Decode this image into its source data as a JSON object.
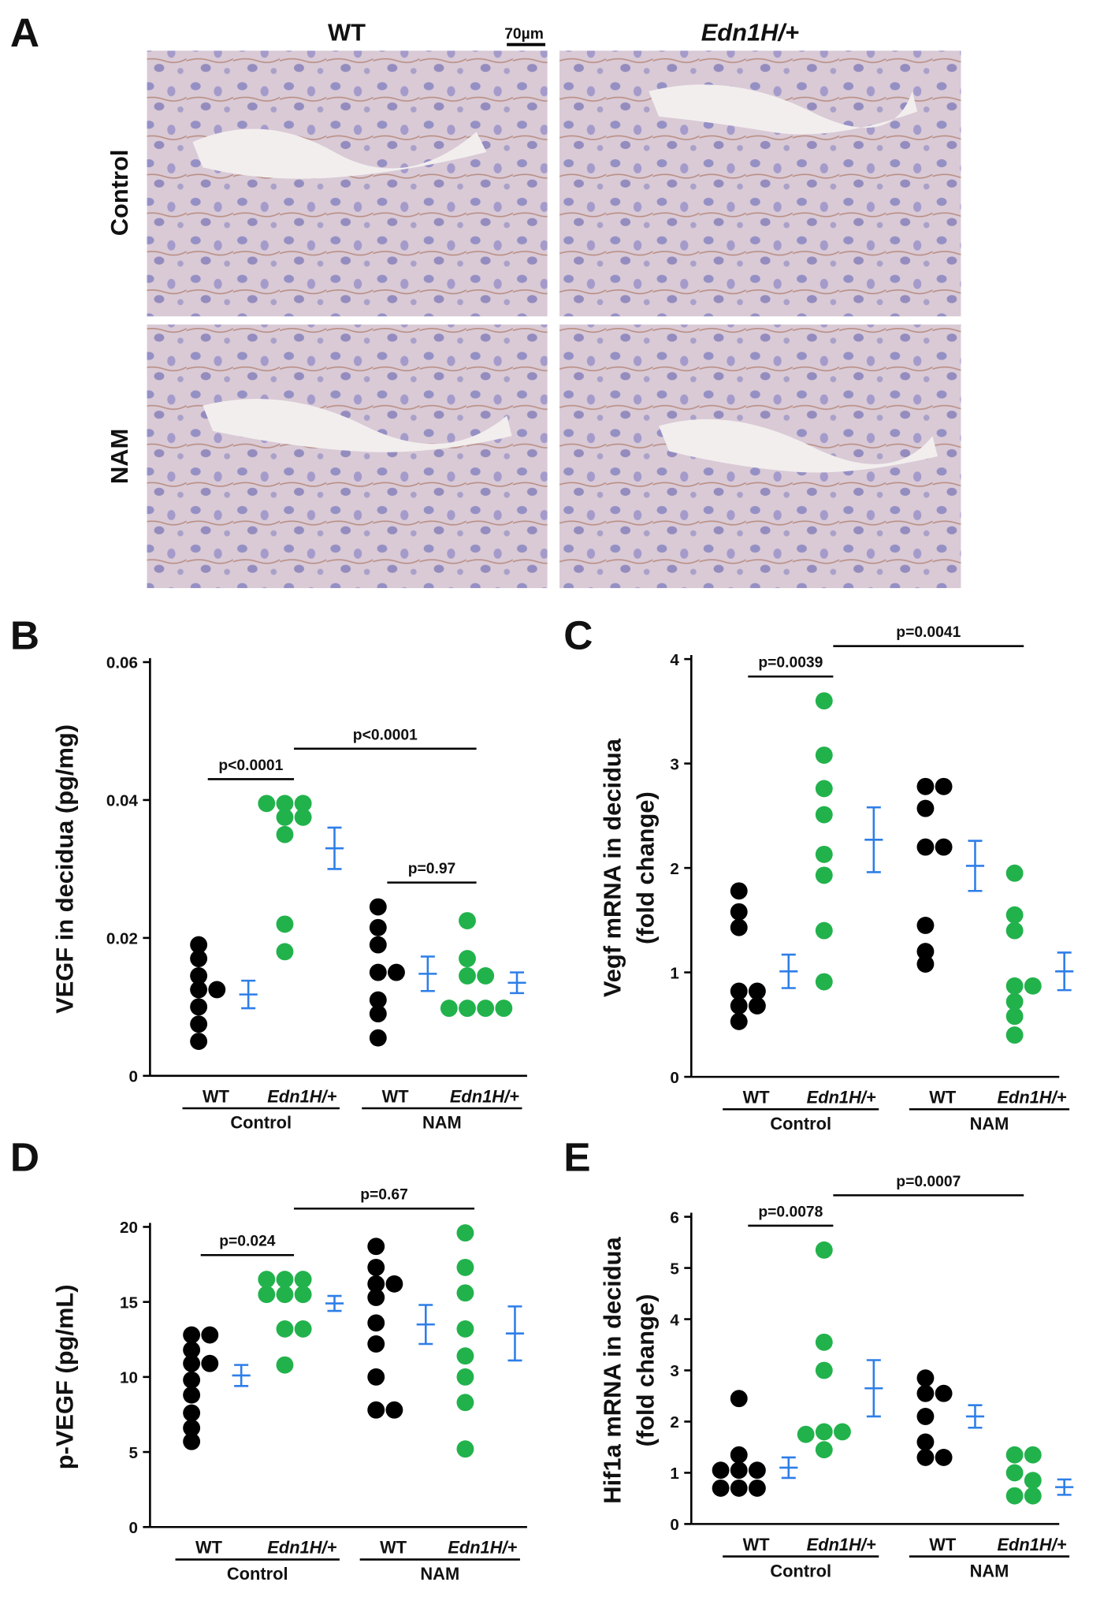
{
  "panel_a": {
    "label": "A",
    "columns": [
      "WT",
      "Edn1H/+"
    ],
    "rows": [
      "Control",
      "NAM"
    ],
    "scale_bar": "70µm"
  },
  "chart_data": [
    {
      "type": "dot",
      "panel": "B",
      "ylabel": [
        "VEGF in decidua (pg/mg)"
      ],
      "ylim": [
        0,
        0.06
      ],
      "yticks": [
        0,
        0.02,
        0.04,
        0.06
      ],
      "categories": [
        "WT",
        "Edn1H/+",
        "WT",
        "Edn1H/+"
      ],
      "groups": [
        "Control",
        "NAM"
      ],
      "colors": [
        "#000000",
        "#22b24c",
        "#000000",
        "#22b24c"
      ],
      "mean_color": "#2d7ee8",
      "values": [
        [
          0.019,
          0.017,
          0.0145,
          0.0125,
          0.0125,
          0.01,
          0.0075,
          0.005
        ],
        [
          0.0395,
          0.0395,
          0.0395,
          0.0375,
          0.0375,
          0.035,
          0.022,
          0.018
        ],
        [
          0.0245,
          0.0215,
          0.019,
          0.015,
          0.015,
          0.011,
          0.009,
          0.0055
        ],
        [
          0.0225,
          0.017,
          0.0145,
          0.0145,
          0.0098,
          0.0098,
          0.0098,
          0.0098
        ]
      ],
      "means": [
        0.0118,
        0.033,
        0.0148,
        0.0135
      ],
      "errors": [
        0.002,
        0.003,
        0.0025,
        0.0015
      ],
      "comparisons": [
        {
          "label": "p<0.0001",
          "from": 0,
          "to": 1
        },
        {
          "label": "p<0.0001",
          "from": 1,
          "to": 3
        },
        {
          "label": "p=0.97",
          "from": 2,
          "to": 3
        }
      ]
    },
    {
      "type": "dot",
      "panel": "C",
      "ylabel": [
        "Vegf mRNA in decidua",
        "(fold change)"
      ],
      "ylim": [
        0,
        4
      ],
      "yticks": [
        0,
        1,
        2,
        3,
        4
      ],
      "categories": [
        "WT",
        "Edn1H/+",
        "WT",
        "Edn1H/+"
      ],
      "groups": [
        "Control",
        "NAM"
      ],
      "colors": [
        "#000000",
        "#22b24c",
        "#000000",
        "#22b24c"
      ],
      "mean_color": "#2d7ee8",
      "values": [
        [
          1.78,
          1.58,
          1.43,
          0.82,
          0.82,
          0.68,
          0.68,
          0.53
        ],
        [
          3.6,
          3.08,
          2.76,
          2.51,
          2.13,
          1.93,
          1.4,
          0.91
        ],
        [
          2.78,
          2.78,
          2.57,
          2.2,
          2.2,
          1.45,
          1.2,
          1.08
        ],
        [
          1.95,
          1.55,
          1.4,
          0.87,
          0.87,
          0.72,
          0.58,
          0.4
        ]
      ],
      "means": [
        1.01,
        2.27,
        2.02,
        1.01
      ],
      "errors": [
        0.16,
        0.31,
        0.24,
        0.18
      ],
      "comparisons": [
        {
          "label": "p=0.0039",
          "from": 0,
          "to": 1
        },
        {
          "label": "p=0.0041",
          "from": 1,
          "to": 3
        }
      ]
    },
    {
      "type": "dot",
      "panel": "D",
      "ylabel": [
        "p-VEGF (pg/mL)"
      ],
      "ylim": [
        0,
        20
      ],
      "yticks": [
        0,
        5,
        10,
        15,
        20
      ],
      "categories": [
        "WT",
        "Edn1H/+",
        "WT",
        "Edn1H/+"
      ],
      "groups": [
        "Control",
        "NAM"
      ],
      "colors": [
        "#000000",
        "#22b24c",
        "#000000",
        "#22b24c"
      ],
      "mean_color": "#2d7ee8",
      "values": [
        [
          12.8,
          12.8,
          11.8,
          10.9,
          10.9,
          9.8,
          8.8,
          7.6,
          6.6,
          5.7
        ],
        [
          16.5,
          16.5,
          16.5,
          15.5,
          15.5,
          15.5,
          13.2,
          13.2,
          10.8
        ],
        [
          18.7,
          17.3,
          16.2,
          16.2,
          15.3,
          13.6,
          12.2,
          10,
          7.8,
          7.8
        ],
        [
          19.6,
          17.3,
          15.6,
          13.2,
          11.4,
          10,
          8.3,
          5.2
        ]
      ],
      "means": [
        10.1,
        14.9,
        13.5,
        12.9
      ],
      "errors": [
        0.7,
        0.5,
        1.3,
        1.8
      ],
      "comparisons": [
        {
          "label": "p=0.024",
          "from": 0,
          "to": 1
        },
        {
          "label": "p=0.67",
          "from": 1,
          "to": 3
        }
      ]
    },
    {
      "type": "dot",
      "panel": "E",
      "ylabel": [
        "Hif1a mRNA in decidua",
        "(fold change)"
      ],
      "ylim": [
        0,
        6
      ],
      "yticks": [
        0,
        1,
        2,
        3,
        4,
        5,
        6
      ],
      "categories": [
        "WT",
        "Edn1H/+",
        "WT",
        "Edn1H/+"
      ],
      "groups": [
        "Control",
        "NAM"
      ],
      "colors": [
        "#000000",
        "#22b24c",
        "#000000",
        "#22b24c"
      ],
      "mean_color": "#2d7ee8",
      "values": [
        [
          2.45,
          1.35,
          1.05,
          1.05,
          1.05,
          0.7,
          0.7,
          0.7
        ],
        [
          5.35,
          3.55,
          3.0,
          1.8,
          1.8,
          1.75,
          1.45
        ],
        [
          2.85,
          2.55,
          2.55,
          2.1,
          1.6,
          1.3,
          1.3
        ],
        [
          1.35,
          1.35,
          1.0,
          0.85,
          0.55,
          0.55
        ]
      ],
      "means": [
        1.1,
        2.65,
        2.1,
        0.72
      ],
      "errors": [
        0.2,
        0.55,
        0.22,
        0.15
      ],
      "comparisons": [
        {
          "label": "p=0.0078",
          "from": 0,
          "to": 1
        },
        {
          "label": "p=0.0007",
          "from": 1,
          "to": 3
        }
      ]
    }
  ]
}
